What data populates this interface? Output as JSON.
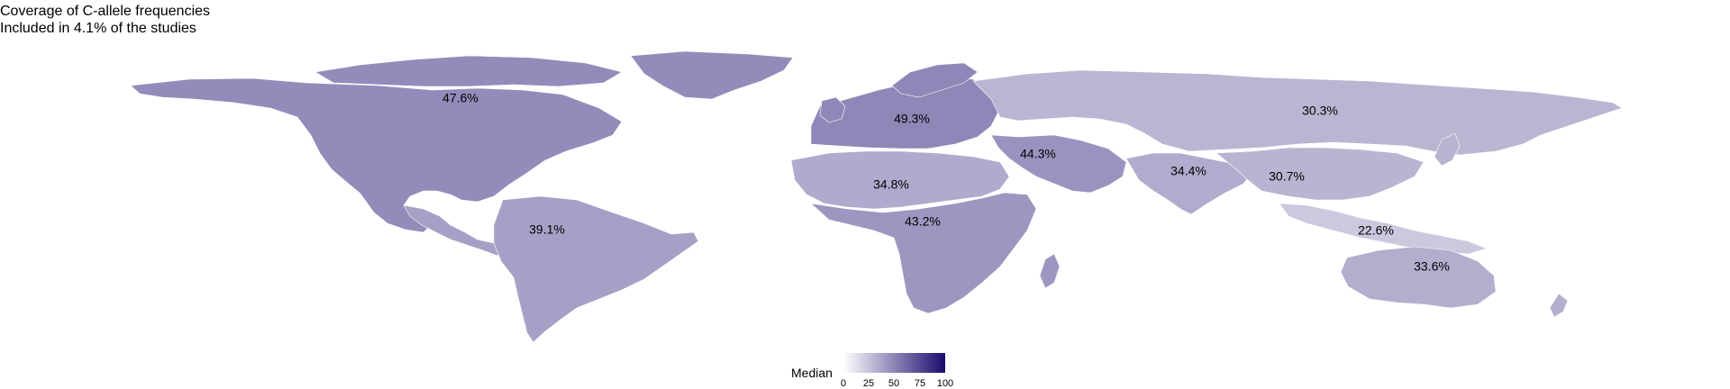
{
  "title": "Coverage of C-allele frequencies",
  "subtitle": "Included in 4.1% of the studies",
  "legend": {
    "title": "Median",
    "ticks": [
      "0",
      "25",
      "50",
      "75",
      "100"
    ],
    "color_low": "#ffffff",
    "color_high": "#1d0b6e"
  },
  "regions": [
    {
      "id": "north-america",
      "label": "47.6%",
      "value": 47.6
    },
    {
      "id": "europe",
      "label": "49.3%",
      "value": 49.3
    },
    {
      "id": "russia-central-asia",
      "label": "30.3%",
      "value": 30.3
    },
    {
      "id": "middle-east",
      "label": "44.3%",
      "value": 44.3
    },
    {
      "id": "south-asia",
      "label": "34.4%",
      "value": 34.4
    },
    {
      "id": "east-asia",
      "label": "30.7%",
      "value": 30.7
    },
    {
      "id": "north-africa",
      "label": "34.8%",
      "value": 34.8
    },
    {
      "id": "sub-saharan-africa",
      "label": "43.2%",
      "value": 43.2
    },
    {
      "id": "south-america",
      "label": "39.1%",
      "value": 39.1
    },
    {
      "id": "southeast-asia",
      "label": "22.6%",
      "value": 22.6
    },
    {
      "id": "oceania",
      "label": "33.6%",
      "value": 33.6
    }
  ]
}
